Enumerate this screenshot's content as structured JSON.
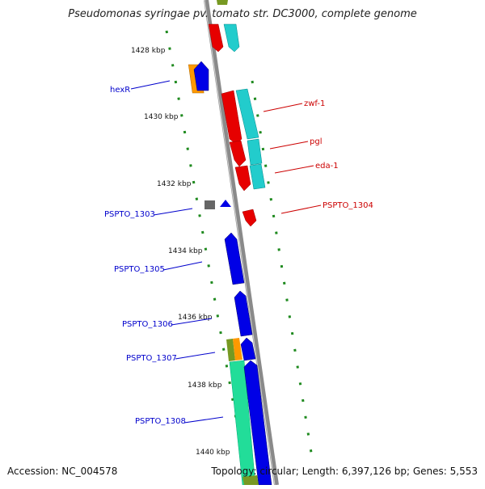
{
  "title": "Pseudomonas syringae pv. tomato str. DC3000, complete genome",
  "footer": {
    "accession": "Accession: NC_004578",
    "summary": "Topology: circular; Length: 6,397,126 bp; Genes: 5,553"
  },
  "kbp_ticks": [
    {
      "kbp": 1428,
      "label": "1428 kbp"
    },
    {
      "kbp": 1430,
      "label": "1430 kbp"
    },
    {
      "kbp": 1432,
      "label": "1432 kbp"
    },
    {
      "kbp": 1434,
      "label": "1434 kbp"
    },
    {
      "kbp": 1436,
      "label": "1436 kbp"
    },
    {
      "kbp": 1438,
      "label": "1438 kbp"
    },
    {
      "kbp": 1440,
      "label": "1440 kbp"
    }
  ],
  "gene_labels": [
    {
      "name": "hexR",
      "color": "#0000cc"
    },
    {
      "name": "zwf-1",
      "color": "#cc0000"
    },
    {
      "name": "pgl",
      "color": "#cc0000"
    },
    {
      "name": "eda-1",
      "color": "#cc0000"
    },
    {
      "name": "PSPTO_1303",
      "color": "#0000cc"
    },
    {
      "name": "PSPTO_1304",
      "color": "#cc0000"
    },
    {
      "name": "PSPTO_1305",
      "color": "#0000cc"
    },
    {
      "name": "PSPTO_1306",
      "color": "#0000cc"
    },
    {
      "name": "PSPTO_1307",
      "color": "#0000cc"
    },
    {
      "name": "PSPTO_1308",
      "color": "#0000cc"
    }
  ],
  "colors": {
    "backbone": "#8a8a8a",
    "tick": "#1f8a1f",
    "forward": "#0000e6",
    "reverse": "#e60000",
    "cog_cyan": "#22cccc",
    "cog_orange": "#ff9900",
    "cog_green": "#22dd99",
    "cog_olive": "#779922",
    "unknown": "#666666"
  }
}
